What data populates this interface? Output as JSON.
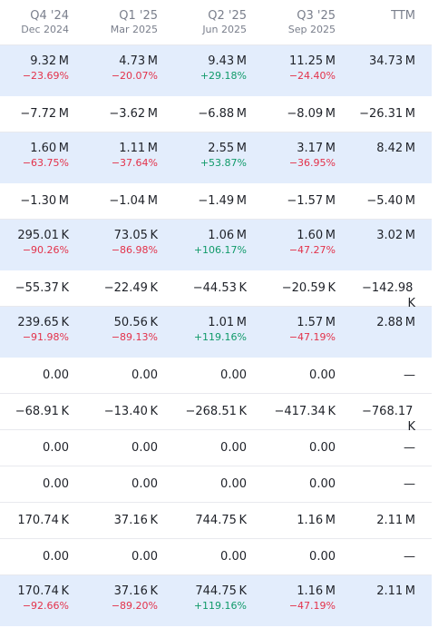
{
  "columns": [
    {
      "quarter": "Q4 '24",
      "date": "Dec 2024"
    },
    {
      "quarter": "Q1 '25",
      "date": "Mar 2025"
    },
    {
      "quarter": "Q2 '25",
      "date": "Jun 2025"
    },
    {
      "quarter": "Q3 '25",
      "date": "Sep 2025"
    },
    {
      "quarter": "TTM",
      "date": ""
    }
  ],
  "rows": [
    {
      "highlight": true,
      "cells": [
        {
          "value": "9.32 M",
          "change": "−23.69%",
          "dir": "neg"
        },
        {
          "value": "4.73 M",
          "change": "−20.07%",
          "dir": "neg"
        },
        {
          "value": "9.43 M",
          "change": "+29.18%",
          "dir": "pos"
        },
        {
          "value": "11.25 M",
          "change": "−24.40%",
          "dir": "neg"
        },
        {
          "value": "34.73 M",
          "change": "",
          "dir": ""
        }
      ]
    },
    {
      "highlight": false,
      "cells": [
        {
          "value": "−7.72 M"
        },
        {
          "value": "−3.62 M"
        },
        {
          "value": "−6.88 M"
        },
        {
          "value": "−8.09 M"
        },
        {
          "value": "−26.31 M"
        }
      ]
    },
    {
      "highlight": true,
      "cells": [
        {
          "value": "1.60 M",
          "change": "−63.75%",
          "dir": "neg"
        },
        {
          "value": "1.11 M",
          "change": "−37.64%",
          "dir": "neg"
        },
        {
          "value": "2.55 M",
          "change": "+53.87%",
          "dir": "pos"
        },
        {
          "value": "3.17 M",
          "change": "−36.95%",
          "dir": "neg"
        },
        {
          "value": "8.42 M",
          "change": "",
          "dir": ""
        }
      ]
    },
    {
      "highlight": false,
      "cells": [
        {
          "value": "−1.30 M"
        },
        {
          "value": "−1.04 M"
        },
        {
          "value": "−1.49 M"
        },
        {
          "value": "−1.57 M"
        },
        {
          "value": "−5.40 M"
        }
      ]
    },
    {
      "highlight": true,
      "cells": [
        {
          "value": "295.01 K",
          "change": "−90.26%",
          "dir": "neg"
        },
        {
          "value": "73.05 K",
          "change": "−86.98%",
          "dir": "neg"
        },
        {
          "value": "1.06 M",
          "change": "+106.17%",
          "dir": "pos"
        },
        {
          "value": "1.60 M",
          "change": "−47.27%",
          "dir": "neg"
        },
        {
          "value": "3.02 M",
          "change": "",
          "dir": ""
        }
      ]
    },
    {
      "highlight": false,
      "cells": [
        {
          "value": "−55.37 K"
        },
        {
          "value": "−22.49 K"
        },
        {
          "value": "−44.53 K"
        },
        {
          "value": "−20.59 K"
        },
        {
          "value": "−142.98 K"
        }
      ]
    },
    {
      "highlight": true,
      "cells": [
        {
          "value": "239.65 K",
          "change": "−91.98%",
          "dir": "neg"
        },
        {
          "value": "50.56 K",
          "change": "−89.13%",
          "dir": "neg"
        },
        {
          "value": "1.01 M",
          "change": "+119.16%",
          "dir": "pos"
        },
        {
          "value": "1.57 M",
          "change": "−47.19%",
          "dir": "neg"
        },
        {
          "value": "2.88 M",
          "change": "",
          "dir": ""
        }
      ]
    },
    {
      "highlight": false,
      "cells": [
        {
          "value": "0.00"
        },
        {
          "value": "0.00"
        },
        {
          "value": "0.00"
        },
        {
          "value": "0.00"
        },
        {
          "value": "—"
        }
      ]
    },
    {
      "highlight": false,
      "cells": [
        {
          "value": "−68.91 K"
        },
        {
          "value": "−13.40 K"
        },
        {
          "value": "−268.51 K"
        },
        {
          "value": "−417.34 K"
        },
        {
          "value": "−768.17 K"
        }
      ]
    },
    {
      "highlight": false,
      "cells": [
        {
          "value": "0.00"
        },
        {
          "value": "0.00"
        },
        {
          "value": "0.00"
        },
        {
          "value": "0.00"
        },
        {
          "value": "—"
        }
      ]
    },
    {
      "highlight": false,
      "cells": [
        {
          "value": "0.00"
        },
        {
          "value": "0.00"
        },
        {
          "value": "0.00"
        },
        {
          "value": "0.00"
        },
        {
          "value": "—"
        }
      ]
    },
    {
      "highlight": false,
      "cells": [
        {
          "value": "170.74 K"
        },
        {
          "value": "37.16 K"
        },
        {
          "value": "744.75 K"
        },
        {
          "value": "1.16 M"
        },
        {
          "value": "2.11 M"
        }
      ]
    },
    {
      "highlight": false,
      "cells": [
        {
          "value": "0.00"
        },
        {
          "value": "0.00"
        },
        {
          "value": "0.00"
        },
        {
          "value": "0.00"
        },
        {
          "value": "—"
        }
      ]
    },
    {
      "highlight": true,
      "cells": [
        {
          "value": "170.74 K",
          "change": "−92.66%",
          "dir": "neg"
        },
        {
          "value": "37.16 K",
          "change": "−89.20%",
          "dir": "neg"
        },
        {
          "value": "744.75 K",
          "change": "+119.16%",
          "dir": "pos"
        },
        {
          "value": "1.16 M",
          "change": "−47.19%",
          "dir": "neg"
        },
        {
          "value": "2.11 M",
          "change": "",
          "dir": ""
        }
      ]
    }
  ]
}
